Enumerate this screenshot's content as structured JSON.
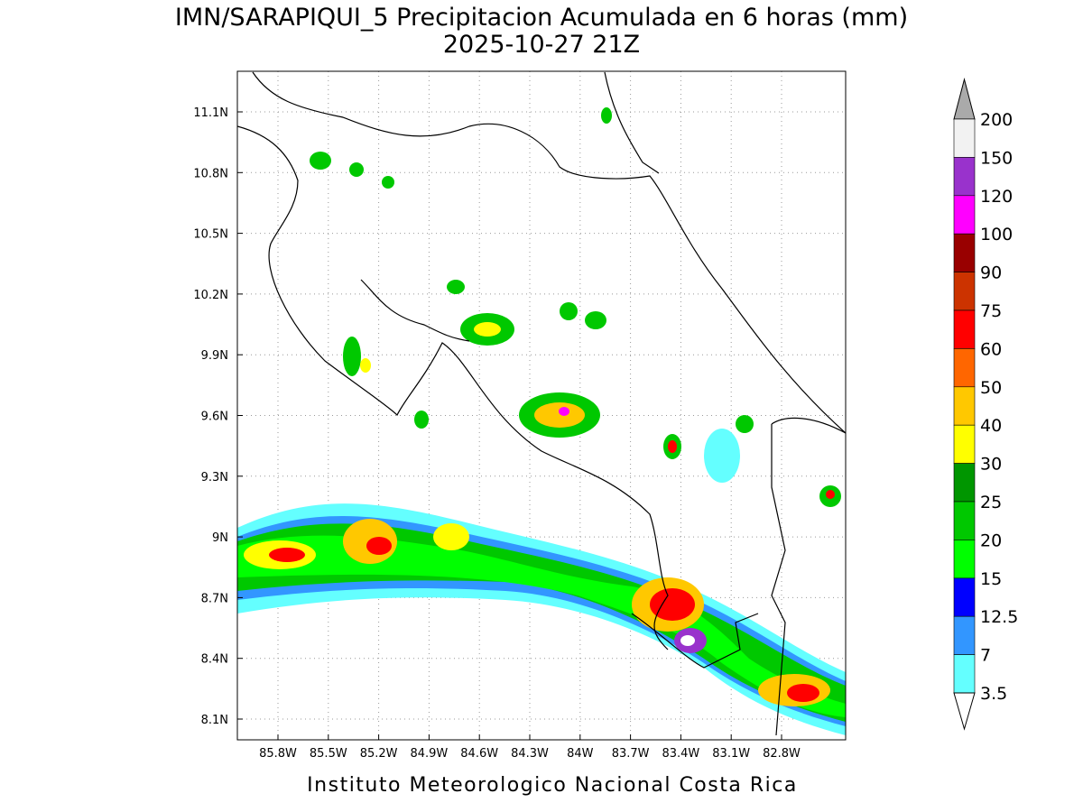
{
  "map": {
    "title": "IMN/SARAPIQUI_5 Precipitacion Acumulada en 6 horas (mm)",
    "subtitle": "2025-10-27 21Z",
    "lon_ticks": [
      "85.8W",
      "85.5W",
      "85.2W",
      "84.9W",
      "84.6W",
      "84.3W",
      "84W",
      "83.7W",
      "83.4W",
      "83.1W",
      "82.8W"
    ],
    "lat_ticks": [
      "11.1N",
      "10.8N",
      "10.5N",
      "10.2N",
      "9.9N",
      "9.6N",
      "9.3N",
      "9N",
      "8.7N",
      "8.4N",
      "8.1N"
    ],
    "colorbar": {
      "levels": [
        200,
        150,
        120,
        100,
        90,
        75,
        60,
        50,
        40,
        30,
        25,
        20,
        15,
        12.5,
        7,
        3.5
      ],
      "colors": [
        "#f2f2f2",
        "#9932cc",
        "#ff00ff",
        "#990000",
        "#cc3300",
        "#ff0000",
        "#ff6600",
        "#ffc800",
        "#ffff00",
        "#009600",
        "#00c800",
        "#00ff00",
        "#0000ff",
        "#3296ff",
        "#64ffff"
      ],
      "over_color": "#aaaaaa",
      "under_color": "#ffffff"
    },
    "footer": "Instituto Meteorologico Nacional Costa Rica"
  }
}
